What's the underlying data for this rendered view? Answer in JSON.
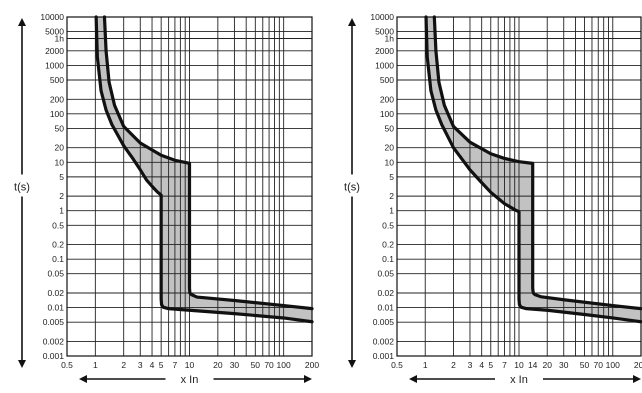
{
  "chart_data": [
    {
      "type": "area",
      "title": "",
      "xlabel": "x In",
      "ylabel": "t(s)",
      "xscale": "log",
      "yscale": "log",
      "xlim": [
        0.5,
        200
      ],
      "ylim": [
        0.001,
        10000
      ],
      "grid": true,
      "x_ticks": [
        "0.5",
        "1",
        "2",
        "3",
        "4",
        "5",
        "7",
        "10",
        "20",
        "30",
        "50",
        "70",
        "100",
        "200"
      ],
      "x_tick_values": [
        0.5,
        1,
        2,
        3,
        4,
        5,
        7,
        10,
        20,
        30,
        50,
        70,
        100,
        200
      ],
      "y_ticks": [
        "10000",
        "5000",
        "1h",
        "2000",
        "1000",
        "500",
        "200",
        "100",
        "50",
        "20",
        "10",
        "5",
        "2",
        "1",
        "0.5",
        "0.2",
        "0.1",
        "0.05",
        "0.02",
        "0.01",
        "0.005",
        "0.002",
        "0.001"
      ],
      "y_tick_values": [
        10000,
        5000,
        3600,
        2000,
        1000,
        500,
        200,
        100,
        50,
        20,
        10,
        5,
        2,
        1,
        0.5,
        0.2,
        0.1,
        0.05,
        0.02,
        0.01,
        0.005,
        0.002,
        0.001
      ],
      "band_color": "#c2c2c2",
      "series": [
        {
          "x": [
            1.02,
            1.05,
            1.15,
            1.3,
            1.5,
            2.0,
            2.5,
            3.0,
            3.5,
            4.0,
            4.5,
            5.0,
            5.0,
            5.05,
            5.25,
            6.0,
            10,
            30,
            100,
            200
          ],
          "y": [
            10000,
            1500,
            300,
            120,
            60,
            22,
            12,
            7,
            4.3,
            3.2,
            2.5,
            2.1,
            0.015,
            0.0115,
            0.0102,
            0.0095,
            0.0088,
            0.0075,
            0.0061,
            0.0051
          ]
        },
        {
          "x": [
            1.25,
            1.3,
            1.4,
            1.6,
            2.0,
            3.0,
            5.0,
            7.0,
            10,
            10,
            10.1,
            10.5,
            12,
            30,
            100,
            200
          ],
          "y": [
            10000,
            2000,
            450,
            150,
            55,
            25,
            14,
            11,
            9.5,
            0.025,
            0.02,
            0.0185,
            0.0165,
            0.014,
            0.011,
            0.0095
          ]
        }
      ]
    },
    {
      "type": "area",
      "title": "",
      "xlabel": "x In",
      "ylabel": "t(s)",
      "xscale": "log",
      "yscale": "log",
      "xlim": [
        0.5,
        200
      ],
      "ylim": [
        0.001,
        10000
      ],
      "grid": true,
      "x_ticks": [
        "0.5",
        "1",
        "2",
        "3",
        "4",
        "5",
        "7",
        "10",
        "14",
        "20",
        "30",
        "50",
        "70",
        "100",
        "200"
      ],
      "x_tick_values": [
        0.5,
        1,
        2,
        3,
        4,
        5,
        7,
        10,
        14,
        20,
        30,
        50,
        70,
        100,
        200
      ],
      "y_ticks": [
        "10000",
        "5000",
        "1h",
        "2000",
        "1000",
        "500",
        "200",
        "100",
        "50",
        "20",
        "10",
        "5",
        "2",
        "1",
        "0.5",
        "0.2",
        "0.1",
        "0.05",
        "0.02",
        "0.01",
        "0.005",
        "0.002",
        "0.001"
      ],
      "y_tick_values": [
        10000,
        5000,
        3600,
        2000,
        1000,
        500,
        200,
        100,
        50,
        20,
        10,
        5,
        2,
        1,
        0.5,
        0.2,
        0.1,
        0.05,
        0.02,
        0.01,
        0.005,
        0.002,
        0.001
      ],
      "band_color": "#c2c2c2",
      "series": [
        {
          "x": [
            1.02,
            1.05,
            1.15,
            1.3,
            1.5,
            2.0,
            3.0,
            4.0,
            5.0,
            7.0,
            9.0,
            10,
            10,
            10.1,
            10.5,
            12,
            20,
            50,
            100,
            200
          ],
          "y": [
            10000,
            1500,
            300,
            120,
            60,
            20,
            7,
            3.8,
            2.4,
            1.4,
            1.05,
            0.95,
            0.015,
            0.0115,
            0.0102,
            0.0095,
            0.0088,
            0.0072,
            0.0061,
            0.0051
          ]
        },
        {
          "x": [
            1.25,
            1.3,
            1.4,
            1.6,
            2.0,
            3.0,
            5.0,
            7.0,
            10,
            14,
            14,
            14.2,
            14.8,
            17,
            30,
            100,
            200
          ],
          "y": [
            10000,
            2000,
            450,
            150,
            55,
            26,
            15,
            12,
            10.3,
            9.5,
            0.025,
            0.02,
            0.0185,
            0.0168,
            0.0145,
            0.011,
            0.0095
          ]
        }
      ]
    }
  ]
}
